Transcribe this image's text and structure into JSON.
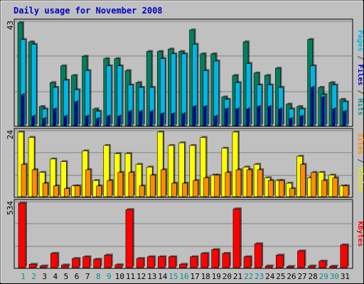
{
  "chart_data": {
    "type": "bar",
    "title": "Daily usage for November 2008",
    "categories": [
      "1",
      "2",
      "3",
      "4",
      "5",
      "6",
      "7",
      "8",
      "9",
      "10",
      "11",
      "12",
      "13",
      "14",
      "15",
      "16",
      "17",
      "18",
      "19",
      "20",
      "21",
      "22",
      "23",
      "24",
      "25",
      "26",
      "27",
      "28",
      "29",
      "30",
      "31"
    ],
    "weekend_days": [
      1,
      2,
      8,
      9,
      15,
      16,
      22,
      23,
      29,
      30
    ],
    "panels": [
      {
        "id": "top",
        "max_label": "43",
        "ymax": 43,
        "side_label_parts": [
          {
            "text": "Pages",
            "color": "#00b6e6"
          },
          {
            "text": " / ",
            "color": "#404040"
          },
          {
            "text": "Files",
            "color": "#0000c8"
          },
          {
            "text": " / ",
            "color": "#404040"
          },
          {
            "text": "Hits",
            "color": "#009090"
          }
        ],
        "series": [
          {
            "name": "Hits",
            "color": "#008060",
            "values": [
              43,
              35,
              8,
              18,
              25,
              21,
              29,
              7,
              28,
              28,
              23,
              18,
              31,
              31,
              32,
              31,
              40,
              30,
              30,
              12,
              21,
              35,
              22,
              21,
              24,
              9,
              8,
              36,
              16,
              18,
              11
            ]
          },
          {
            "name": "Files",
            "color": "#0000c8",
            "values": [
              13,
              4,
              3,
              7,
              4,
              10,
              4,
              3,
              4,
              4,
              6,
              6,
              6,
              5,
              5,
              5,
              8,
              8,
              4,
              7,
              7,
              7,
              8,
              8,
              7,
              3,
              4,
              16,
              12,
              7,
              6
            ]
          },
          {
            "name": "Pages",
            "color": "#00b6e6",
            "values": [
              36,
              34,
              7,
              16,
              19,
              15,
              23,
              6,
              25,
              25,
              17,
              16,
              16,
              28,
              30,
              30,
              34,
              23,
              27,
              11,
              18,
              26,
              17,
              17,
              16,
              7,
              7,
              25,
              13,
              17,
              10
            ]
          }
        ]
      },
      {
        "id": "middle",
        "max_label": "24",
        "ymax": 24,
        "side_label_parts": [
          {
            "text": "Sites",
            "color": "#ff8c00"
          },
          {
            "text": " / ",
            "color": "#404040"
          },
          {
            "text": "Visits",
            "color": "#e8e800"
          }
        ],
        "series": [
          {
            "name": "Visits",
            "color": "#ffff00",
            "values": [
              24,
              22,
              9,
              14,
              13,
              4,
              17,
              6,
              19,
              16,
              16,
              12,
              11,
              24,
              19,
              20,
              19,
              22,
              8,
              18,
              24,
              11,
              12,
              7,
              6,
              5,
              15,
              7,
              9,
              8,
              4
            ]
          },
          {
            "name": "Sites",
            "color": "#ff8c00",
            "values": [
              12,
              10,
              5,
              4,
              3,
              4,
              10,
              4,
              6,
              9,
              9,
              4,
              8,
              10,
              5,
              5,
              6,
              7,
              8,
              9,
              10,
              10,
              10,
              6,
              6,
              3,
              12,
              9,
              6,
              7,
              4
            ]
          }
        ]
      },
      {
        "id": "bottom",
        "max_label": "534",
        "ymax": 534,
        "side_label_parts": [
          {
            "text": "KBytes",
            "color": "#ff0000"
          }
        ],
        "series": [
          {
            "name": "KBytes",
            "color": "#ff0000",
            "values": [
              534,
              28,
              14,
              118,
              22,
              76,
              90,
              70,
              104,
              24,
              480,
              76,
              90,
              90,
              90,
              28,
              90,
              118,
              150,
              118,
              486,
              90,
              198,
              14,
              104,
              10,
              138,
              14,
              54,
              12,
              188
            ]
          }
        ]
      }
    ],
    "colors": {
      "title": "#0000c8",
      "weekday_label": "#000000",
      "weekend_label": "#009090",
      "plot_bg": "#c0c0c0",
      "grid": "#808080",
      "axis_label": "#000000"
    }
  }
}
